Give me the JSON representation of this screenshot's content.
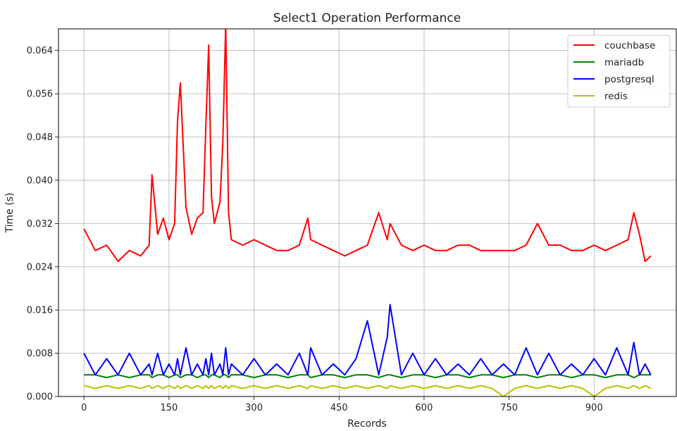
{
  "chart_data": {
    "type": "line",
    "title": "Select1 Operation Performance",
    "xlabel": "Records",
    "ylabel": "Time (s)",
    "xlim": [
      -45,
      1045
    ],
    "ylim": [
      0,
      0.068
    ],
    "xticks": [
      0,
      150,
      300,
      450,
      600,
      750,
      900
    ],
    "xtick_labels": [
      "0",
      "150",
      "300",
      "450",
      "600",
      "750",
      "900"
    ],
    "yticks": [
      0.0,
      0.008,
      0.016,
      0.024,
      0.032,
      0.04,
      0.048,
      0.056,
      0.064
    ],
    "ytick_labels": [
      "0.000",
      "0.008",
      "0.016",
      "0.024",
      "0.032",
      "0.040",
      "0.048",
      "0.056",
      "0.064"
    ],
    "grid": true,
    "legend_position": "top-right",
    "x": [
      0,
      20,
      40,
      60,
      80,
      100,
      115,
      120,
      130,
      140,
      150,
      160,
      165,
      170,
      180,
      190,
      200,
      210,
      215,
      220,
      225,
      230,
      240,
      245,
      250,
      255,
      260,
      280,
      300,
      320,
      340,
      360,
      380,
      395,
      400,
      420,
      440,
      460,
      480,
      500,
      520,
      535,
      540,
      560,
      580,
      600,
      620,
      640,
      660,
      680,
      700,
      720,
      740,
      760,
      780,
      800,
      820,
      840,
      860,
      880,
      900,
      920,
      940,
      960,
      970,
      980,
      990,
      1000
    ],
    "series": [
      {
        "name": "couchbase",
        "color": "#ff0000",
        "values": [
          0.031,
          0.027,
          0.028,
          0.025,
          0.027,
          0.026,
          0.028,
          0.041,
          0.03,
          0.033,
          0.029,
          0.032,
          0.051,
          0.058,
          0.035,
          0.03,
          0.033,
          0.034,
          0.05,
          0.065,
          0.037,
          0.032,
          0.036,
          0.047,
          0.069,
          0.034,
          0.029,
          0.028,
          0.029,
          0.028,
          0.027,
          0.027,
          0.028,
          0.033,
          0.029,
          0.028,
          0.027,
          0.026,
          0.027,
          0.028,
          0.034,
          0.029,
          0.032,
          0.028,
          0.027,
          0.028,
          0.027,
          0.027,
          0.028,
          0.028,
          0.027,
          0.027,
          0.027,
          0.027,
          0.028,
          0.032,
          0.028,
          0.028,
          0.027,
          0.027,
          0.028,
          0.027,
          0.028,
          0.029,
          0.034,
          0.03,
          0.025,
          0.026
        ]
      },
      {
        "name": "mariadb",
        "color": "#008000",
        "values": [
          0.004,
          0.004,
          0.0035,
          0.004,
          0.0035,
          0.004,
          0.004,
          0.0035,
          0.004,
          0.004,
          0.0035,
          0.004,
          0.004,
          0.0035,
          0.004,
          0.004,
          0.0035,
          0.004,
          0.004,
          0.0035,
          0.004,
          0.004,
          0.0035,
          0.004,
          0.004,
          0.0035,
          0.004,
          0.004,
          0.0035,
          0.004,
          0.004,
          0.0035,
          0.004,
          0.004,
          0.0035,
          0.004,
          0.004,
          0.0035,
          0.004,
          0.004,
          0.0035,
          0.004,
          0.004,
          0.0035,
          0.004,
          0.004,
          0.0035,
          0.004,
          0.004,
          0.0035,
          0.004,
          0.004,
          0.0035,
          0.004,
          0.004,
          0.0035,
          0.004,
          0.004,
          0.0035,
          0.004,
          0.004,
          0.0035,
          0.004,
          0.004,
          0.0035,
          0.004,
          0.004,
          0.004
        ]
      },
      {
        "name": "postgresql",
        "color": "#0000ff",
        "values": [
          0.008,
          0.004,
          0.007,
          0.004,
          0.008,
          0.004,
          0.006,
          0.004,
          0.008,
          0.004,
          0.006,
          0.004,
          0.007,
          0.004,
          0.009,
          0.004,
          0.006,
          0.004,
          0.007,
          0.004,
          0.008,
          0.004,
          0.006,
          0.004,
          0.009,
          0.004,
          0.006,
          0.004,
          0.007,
          0.004,
          0.006,
          0.004,
          0.008,
          0.004,
          0.009,
          0.004,
          0.006,
          0.004,
          0.007,
          0.014,
          0.004,
          0.011,
          0.017,
          0.004,
          0.008,
          0.004,
          0.007,
          0.004,
          0.006,
          0.004,
          0.007,
          0.004,
          0.006,
          0.004,
          0.009,
          0.004,
          0.008,
          0.004,
          0.006,
          0.004,
          0.007,
          0.004,
          0.009,
          0.004,
          0.01,
          0.004,
          0.006,
          0.004
        ]
      },
      {
        "name": "redis",
        "color": "#bfbf00",
        "values": [
          0.002,
          0.0015,
          0.002,
          0.0015,
          0.002,
          0.0015,
          0.002,
          0.0015,
          0.002,
          0.0015,
          0.002,
          0.0015,
          0.002,
          0.0015,
          0.002,
          0.0015,
          0.002,
          0.0015,
          0.002,
          0.0015,
          0.002,
          0.0015,
          0.002,
          0.0015,
          0.002,
          0.0015,
          0.002,
          0.0015,
          0.002,
          0.0015,
          0.002,
          0.0015,
          0.002,
          0.0015,
          0.002,
          0.0015,
          0.002,
          0.0015,
          0.002,
          0.0015,
          0.002,
          0.0015,
          0.002,
          0.0015,
          0.002,
          0.0015,
          0.002,
          0.0015,
          0.002,
          0.0015,
          0.002,
          0.0015,
          0.0,
          0.0015,
          0.002,
          0.0015,
          0.002,
          0.0015,
          0.002,
          0.0015,
          0.0,
          0.0015,
          0.002,
          0.0015,
          0.002,
          0.0015,
          0.002,
          0.0015
        ]
      }
    ]
  }
}
